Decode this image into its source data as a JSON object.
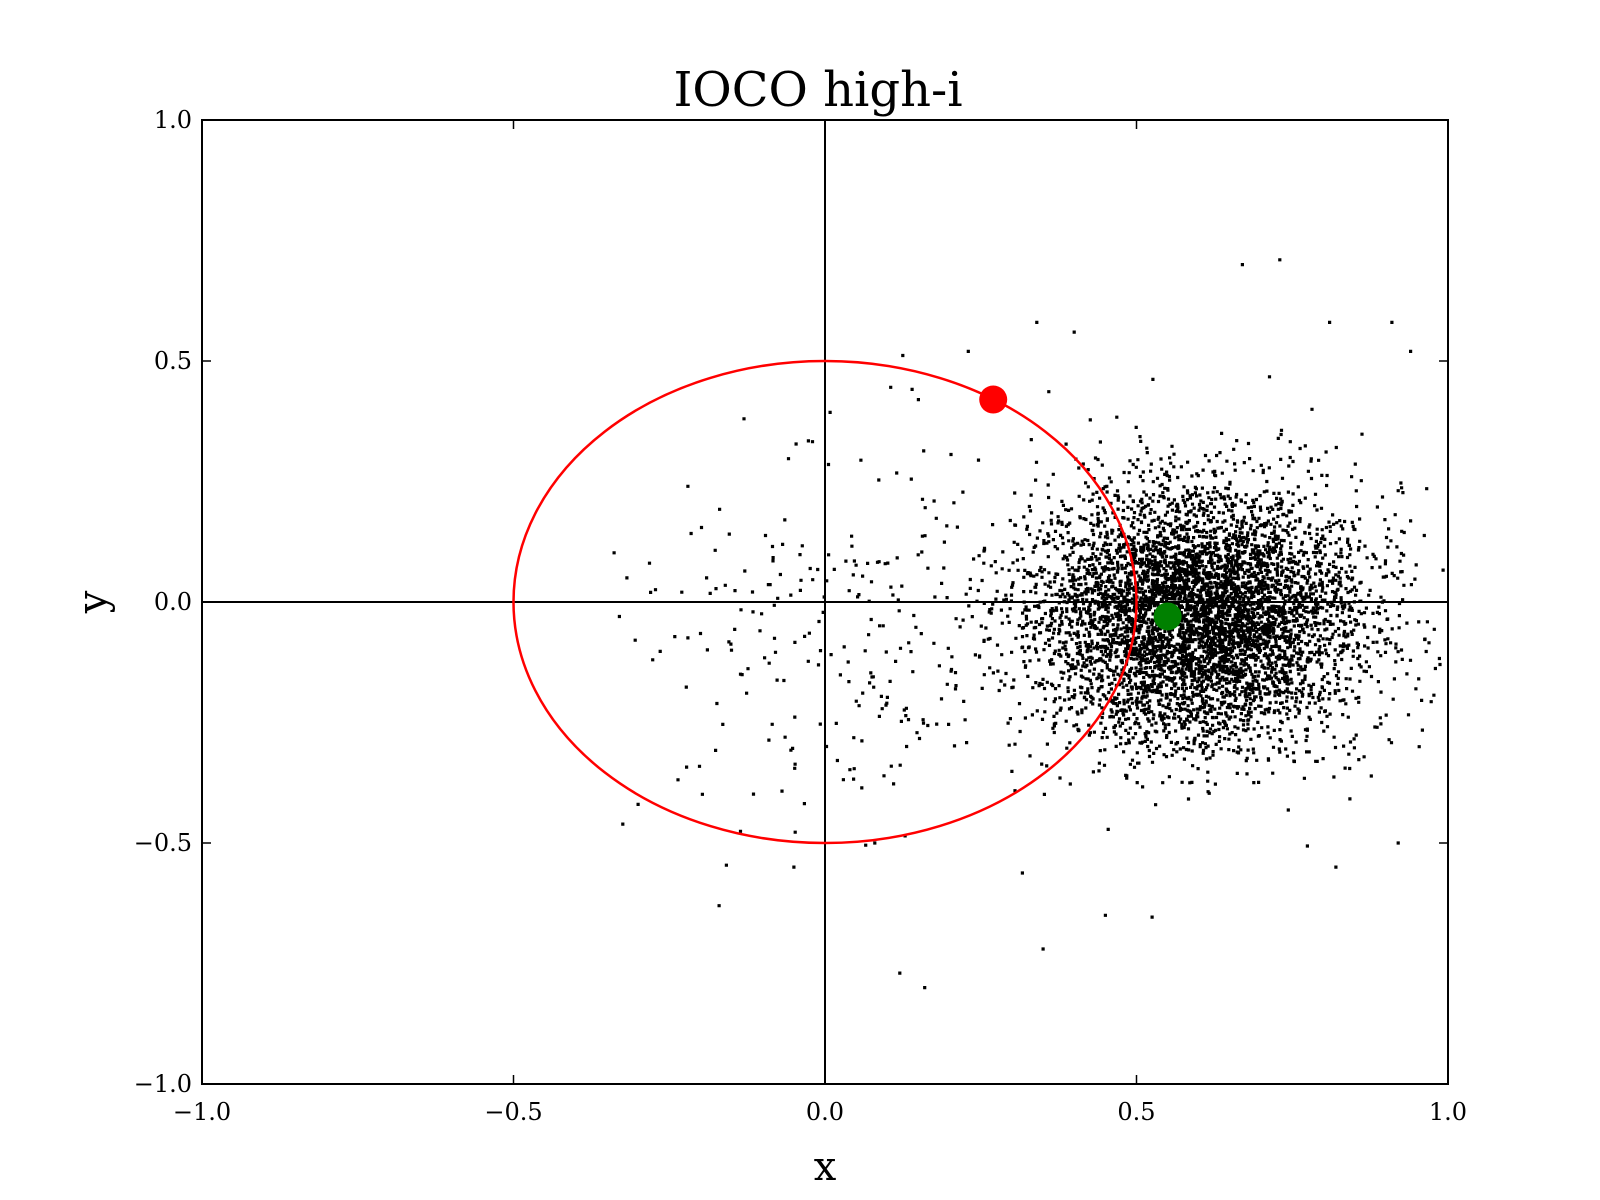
{
  "chart_data": {
    "type": "scatter",
    "title": "IOCO high-i",
    "xlabel": "x",
    "ylabel": "y",
    "xlim": [
      -1.0,
      1.0
    ],
    "ylim": [
      -1.0,
      1.0
    ],
    "xticks": [
      "−1.0",
      "−0.5",
      "0.0",
      "0.5",
      "1.0"
    ],
    "yticks": [
      "1.0",
      "0.5",
      "0.0",
      "−0.5",
      "−1.0"
    ],
    "xtick_values": [
      -1.0,
      -0.5,
      0.0,
      0.5,
      1.0
    ],
    "ytick_values": [
      1.0,
      0.5,
      0.0,
      -0.5,
      -1.0
    ],
    "grid": false,
    "reference_lines": {
      "x": 0.0,
      "y": 0.0,
      "color": "#000000"
    },
    "circle": {
      "cx": 0.0,
      "cy": 0.0,
      "r": 0.5,
      "color": "#ff0000"
    },
    "red_point": {
      "x": 0.27,
      "y": 0.42,
      "color": "#ff0000"
    },
    "green_point": {
      "x": 0.55,
      "y": -0.03,
      "color": "#008000"
    },
    "cloud": {
      "center": [
        0.6,
        -0.03
      ],
      "std": [
        0.13,
        0.13
      ],
      "color": "#000000",
      "outliers": [
        [
          -0.33,
          -0.03
        ],
        [
          -0.28,
          0.02
        ],
        [
          -0.22,
          0.24
        ],
        [
          -0.3,
          -0.42
        ],
        [
          -0.17,
          -0.63
        ],
        [
          -0.13,
          0.38
        ],
        [
          0.12,
          -0.77
        ],
        [
          0.16,
          -0.8
        ],
        [
          0.15,
          0.42
        ],
        [
          0.23,
          0.52
        ],
        [
          0.34,
          0.58
        ],
        [
          0.4,
          0.56
        ],
        [
          0.67,
          0.7
        ],
        [
          0.73,
          0.71
        ],
        [
          0.81,
          0.58
        ],
        [
          0.91,
          0.58
        ],
        [
          0.94,
          0.52
        ],
        [
          0.92,
          -0.5
        ],
        [
          0.82,
          -0.55
        ],
        [
          0.35,
          -0.72
        ],
        [
          0.45,
          -0.65
        ],
        [
          -0.05,
          -0.55
        ],
        [
          0.08,
          -0.5
        ],
        [
          -0.19,
          0.05
        ],
        [
          -0.15,
          -0.1
        ]
      ]
    }
  }
}
